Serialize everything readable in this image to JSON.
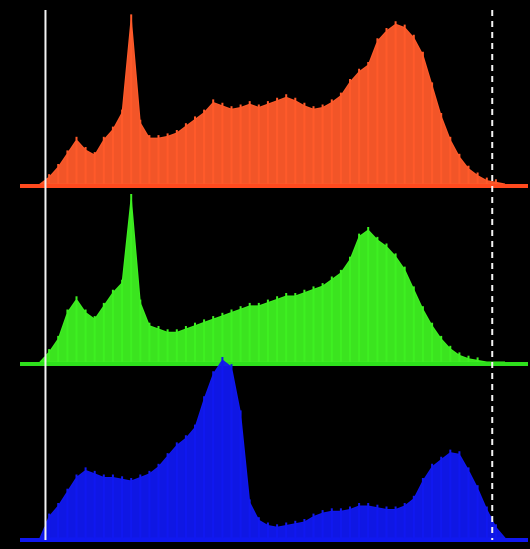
{
  "chart_data": {
    "type": "area",
    "title": "",
    "xlabel": "",
    "ylabel": "",
    "grid": false,
    "legend": "none",
    "xlim": [
      0,
      255
    ],
    "x_step": 5,
    "clip_markers": [
      {
        "channel": "all",
        "x": 3,
        "style": "solid"
      },
      {
        "channel": "all",
        "x": 248,
        "style": "dashed"
      }
    ],
    "series": [
      {
        "channel": "red",
        "color": "#ff5a2a",
        "baseline_color": "#ff4a1e",
        "ylim": [
          0,
          100
        ],
        "values": [
          0,
          4,
          10,
          18,
          26,
          20,
          17,
          26,
          32,
          42,
          98,
          36,
          27,
          27,
          28,
          30,
          34,
          38,
          42,
          48,
          46,
          44,
          45,
          47,
          45,
          47,
          49,
          51,
          49,
          46,
          44,
          45,
          48,
          52,
          60,
          66,
          70,
          84,
          90,
          94,
          92,
          86,
          76,
          58,
          40,
          26,
          16,
          9,
          5,
          2,
          1,
          0
        ]
      },
      {
        "channel": "green",
        "color": "#3ef021",
        "baseline_color": "#2ee01c",
        "ylim": [
          0,
          100
        ],
        "values": [
          0,
          6,
          14,
          30,
          38,
          30,
          26,
          34,
          42,
          48,
          100,
          36,
          22,
          20,
          18,
          18,
          20,
          22,
          24,
          26,
          28,
          30,
          32,
          34,
          34,
          36,
          38,
          40,
          40,
          42,
          44,
          46,
          50,
          54,
          62,
          76,
          80,
          74,
          70,
          64,
          56,
          44,
          32,
          22,
          14,
          8,
          4,
          2,
          1,
          0,
          0,
          0
        ]
      },
      {
        "channel": "blue",
        "color": "#1018f0",
        "baseline_color": "#1018f0",
        "ylim": [
          0,
          100
        ],
        "values": [
          0,
          12,
          18,
          26,
          34,
          38,
          36,
          34,
          34,
          33,
          32,
          34,
          36,
          40,
          46,
          52,
          56,
          62,
          78,
          92,
          100,
          96,
          70,
          20,
          10,
          7,
          6,
          7,
          8,
          9,
          12,
          14,
          15,
          15,
          16,
          18,
          18,
          17,
          16,
          16,
          18,
          22,
          32,
          40,
          44,
          48,
          47,
          38,
          28,
          16,
          6,
          0
        ]
      }
    ]
  }
}
